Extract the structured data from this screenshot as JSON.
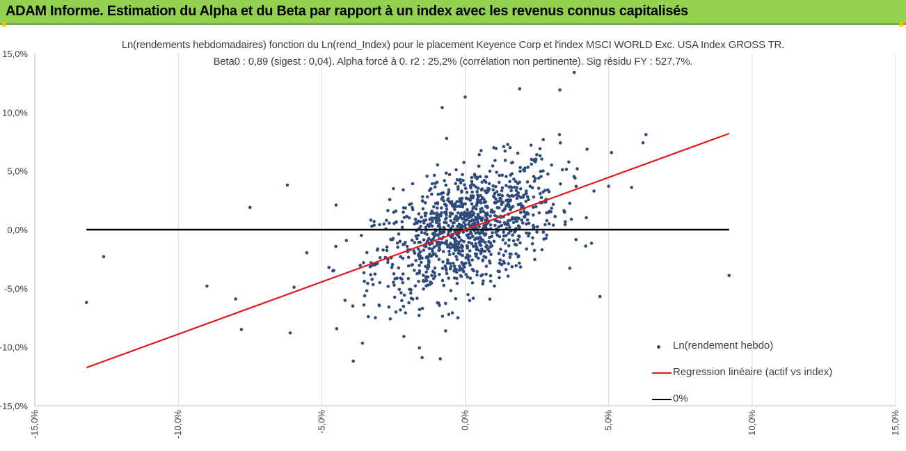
{
  "header": {
    "title": "ADAM Informe. Estimation du Alpha et du Beta par rapport à un index avec les revenus connus capitalisés"
  },
  "colors": {
    "banner": "#92d050",
    "banner_border": "#70ad47",
    "corner_marker": "#f5c400",
    "points": "#2f4b7c",
    "regression": "#e31a1c",
    "zero_line": "#000000"
  },
  "chart_data": {
    "type": "scatter",
    "title": "Ln(rendements hebdomadaires) fonction du Ln(rend_Index) pour le placement Keyence Corp et l'index MSCI WORLD Exc. USA Index GROSS TR.",
    "subtitle": "Beta0 : 0,89  (sigest : 0,04).  Alpha forcé à 0. r2 : 25,2% (corrélation non pertinente). Sig résidu FY : 527,7%.",
    "xlabel": "",
    "ylabel": "",
    "xlim": [
      -15,
      15
    ],
    "ylim": [
      -15,
      15
    ],
    "grid": "vertical",
    "legend_position": "bottom-right",
    "x_ticks": [
      "-15,0%",
      "-10,0%",
      "-5,0%",
      "0,0%",
      "5,0%",
      "10,0%",
      "15,0%"
    ],
    "y_ticks": [
      "15,0%",
      "10,0%",
      "5,0%",
      "0,0%",
      "-5,0%",
      "-10,0%",
      "-15,0%"
    ],
    "series": [
      {
        "name": "Ln(rendement hebdo)",
        "kind": "scatter",
        "n_points_approx": 1100,
        "cloud": {
          "x_mean": 0.05,
          "x_std": 1.6,
          "y_mean": 0.0,
          "y_std": 3.0
        },
        "notable_points": [
          [
            -13.2,
            -6.2
          ],
          [
            -12.6,
            -2.3
          ],
          [
            -6.2,
            3.8
          ],
          [
            -7.5,
            1.9
          ],
          [
            -9.0,
            -4.8
          ],
          [
            -8.0,
            -5.9
          ],
          [
            -7.8,
            -8.5
          ],
          [
            -6.1,
            -8.8
          ],
          [
            -4.5,
            2.1
          ],
          [
            -3.9,
            -11.2
          ],
          [
            -1.5,
            -10.9
          ],
          [
            -0.8,
            10.4
          ],
          [
            0.0,
            11.3
          ],
          [
            1.9,
            12.0
          ],
          [
            3.3,
            11.9
          ],
          [
            3.8,
            13.4
          ],
          [
            6.3,
            8.1
          ],
          [
            6.2,
            7.4
          ],
          [
            5.8,
            3.6
          ],
          [
            5.0,
            3.7
          ],
          [
            9.2,
            -3.9
          ],
          [
            4.7,
            -5.7
          ],
          [
            4.2,
            -1.4
          ]
        ]
      },
      {
        "name": "Regression linéaire (actif vs index)",
        "kind": "line",
        "x": [
          -13.2,
          9.2
        ],
        "y": [
          -11.75,
          8.19
        ]
      },
      {
        "name": "0%",
        "kind": "line",
        "x": [
          -13.2,
          9.2
        ],
        "y": [
          0,
          0
        ]
      }
    ]
  }
}
